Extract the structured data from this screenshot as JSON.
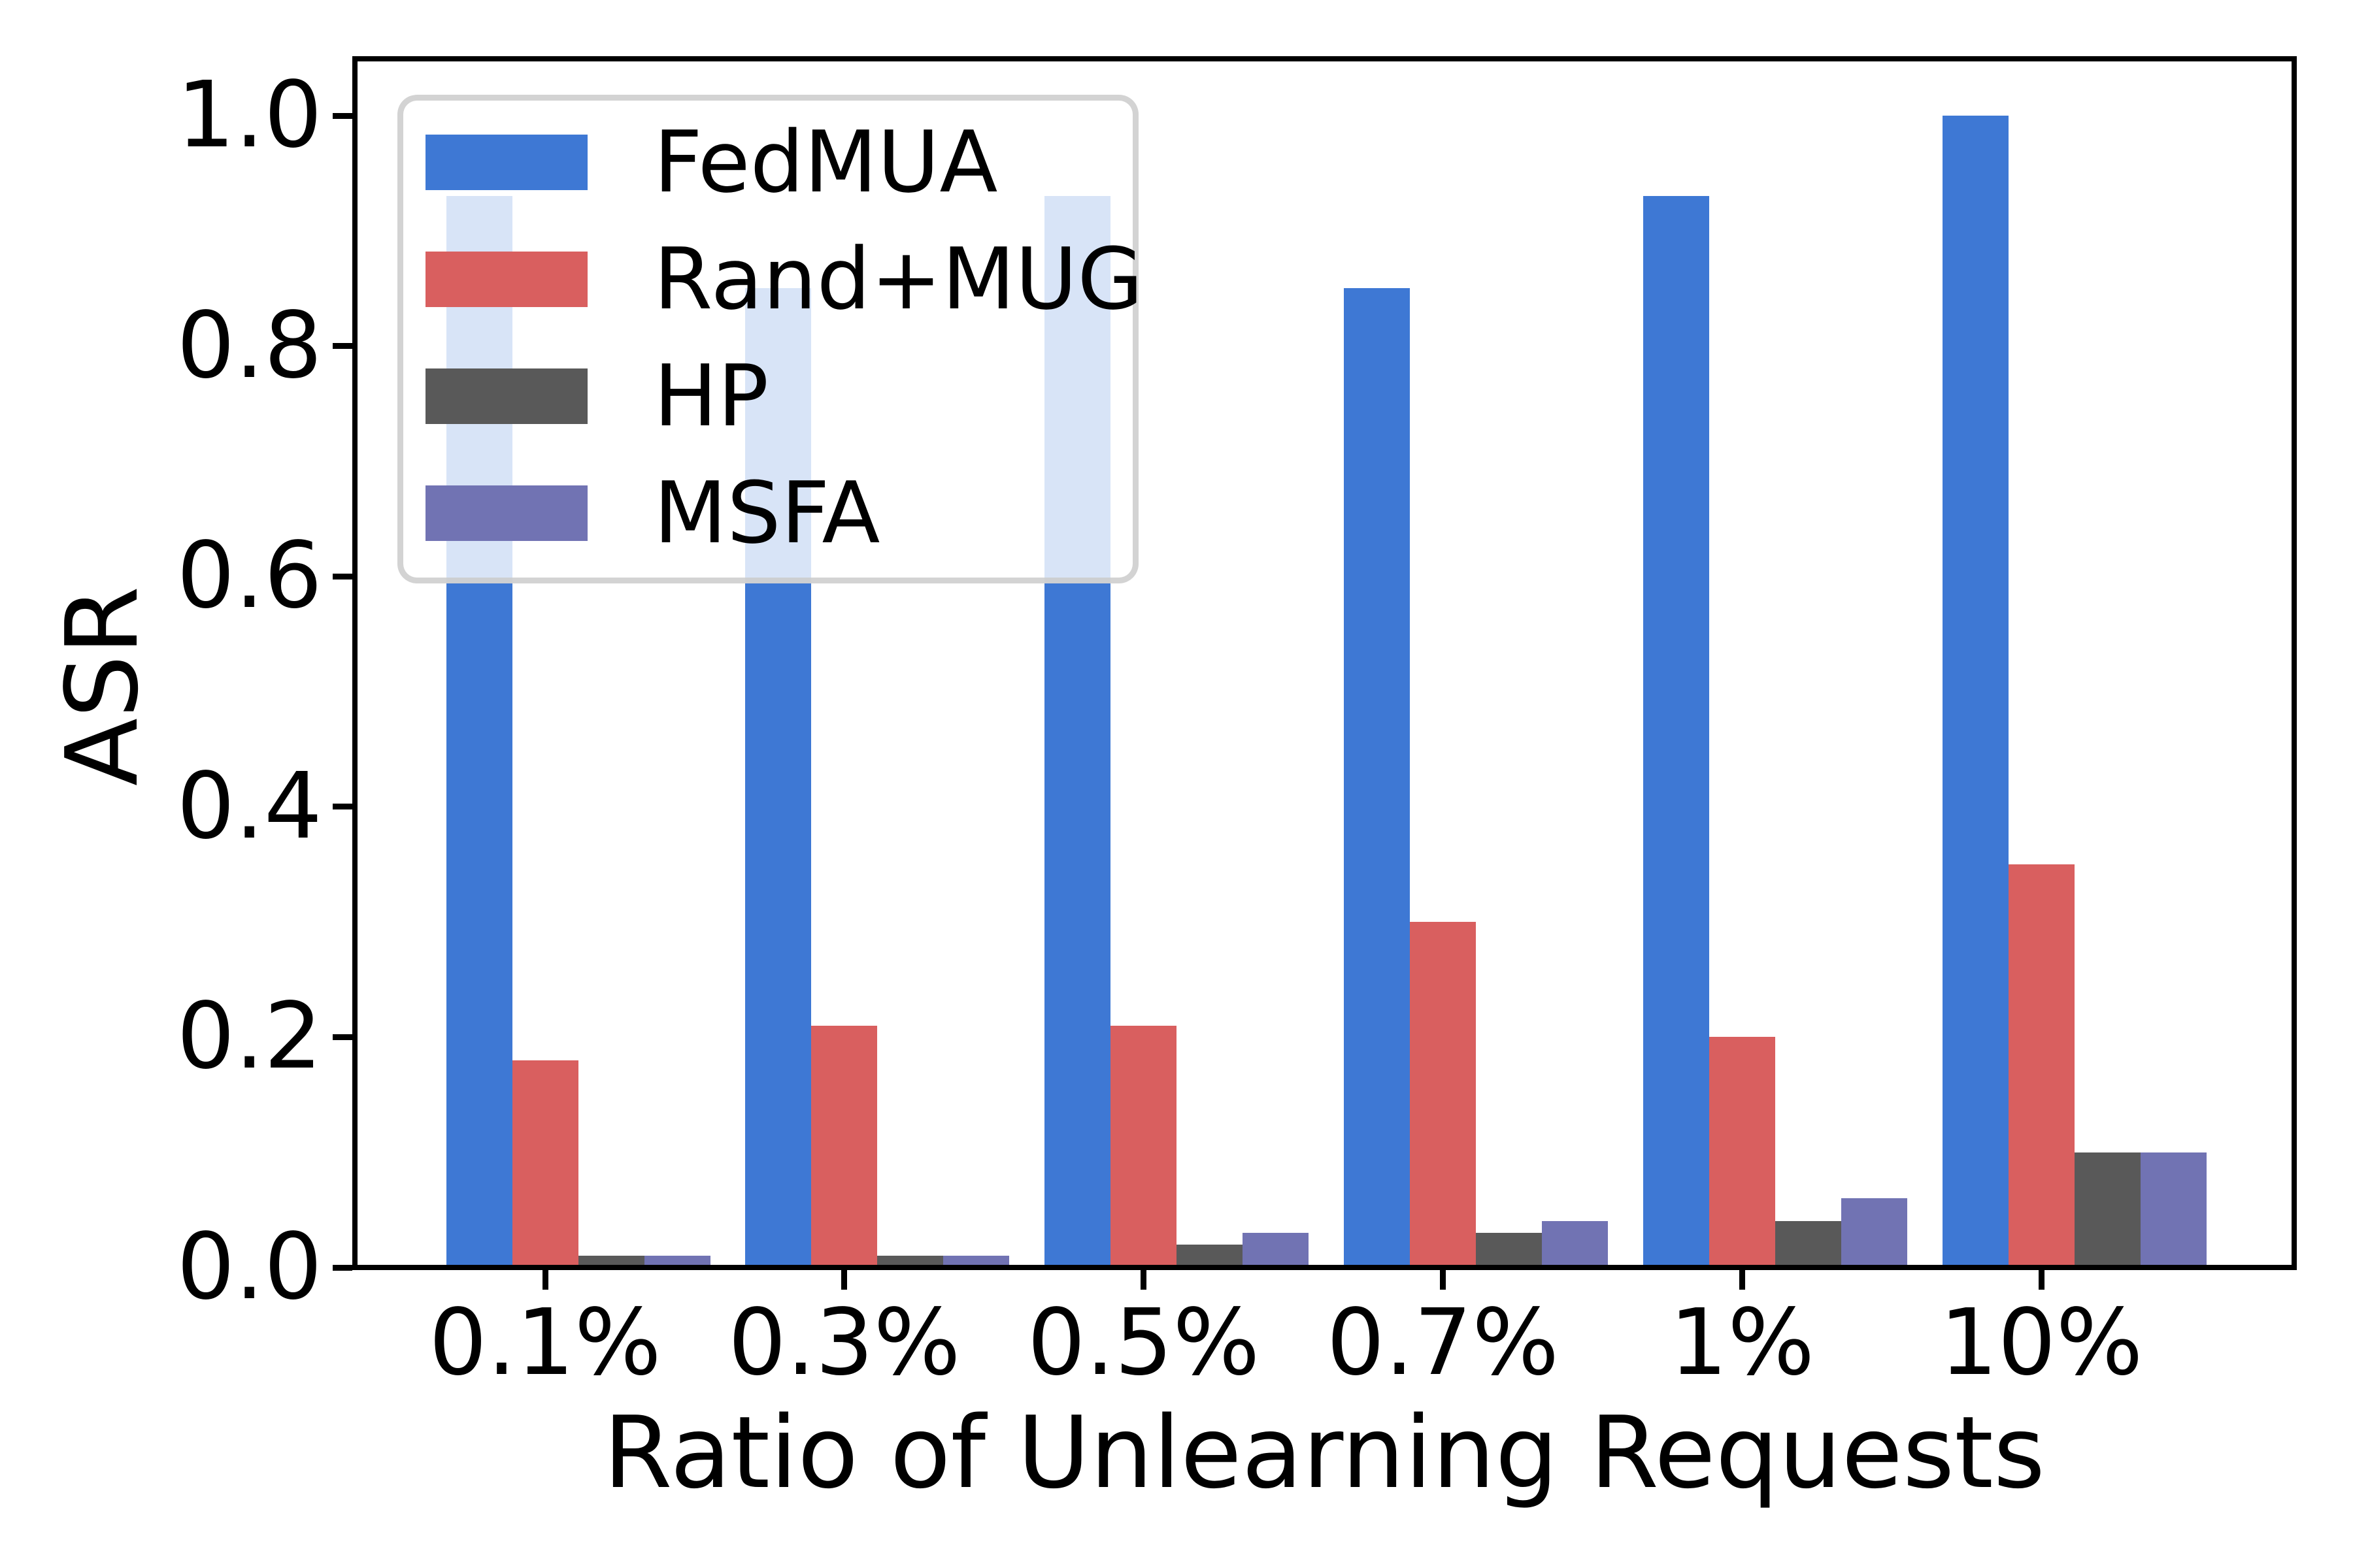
{
  "figure": {
    "background_color": "#ffffff",
    "axis_color": "#000000",
    "text_color": "#000000"
  },
  "chart_data": {
    "type": "bar",
    "title": "",
    "xlabel": "Ratio of Unlearning Requests",
    "ylabel": "ASR",
    "categories": [
      "0.1%",
      "0.3%",
      "0.5%",
      "0.7%",
      "1%",
      "10%"
    ],
    "series": [
      {
        "name": "FedMUA",
        "color": "#3E78D4",
        "values": [
          0.93,
          0.85,
          0.93,
          0.85,
          0.93,
          1.0
        ]
      },
      {
        "name": "Rand+MUG",
        "color": "#D95F5F",
        "values": [
          0.18,
          0.21,
          0.21,
          0.3,
          0.2,
          0.35
        ]
      },
      {
        "name": "HP",
        "color": "#595959",
        "values": [
          0.01,
          0.01,
          0.02,
          0.03,
          0.04,
          0.1
        ]
      },
      {
        "name": "MSFA",
        "color": "#7173B3",
        "values": [
          0.01,
          0.01,
          0.03,
          0.04,
          0.06,
          0.1
        ]
      }
    ],
    "y_ticks": [
      "0.0",
      "0.2",
      "0.4",
      "0.6",
      "0.8",
      "1.0"
    ],
    "x_ticks": [
      "0.1%",
      "0.3%",
      "0.5%",
      "0.7%",
      "1%",
      "10%"
    ],
    "ylim": [
      0,
      1.05
    ],
    "grid": false,
    "legend_position": "upper left",
    "legend_background": "rgba(255,255,255,0.8)",
    "legend_border_color": "#cbcbcb"
  }
}
